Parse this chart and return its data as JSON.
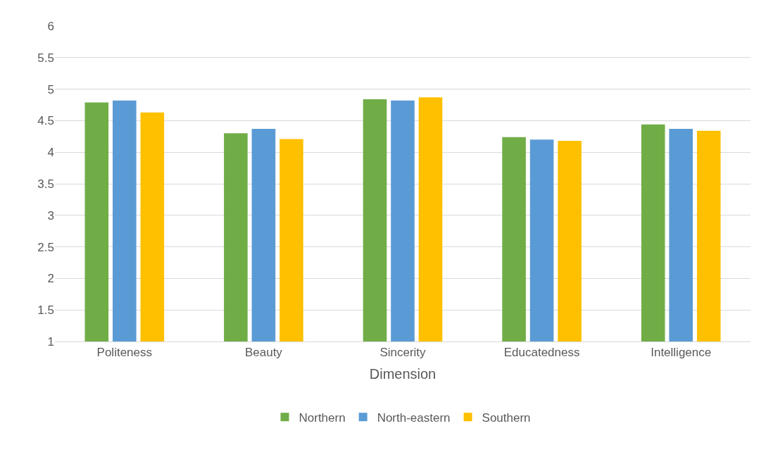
{
  "chart_data": {
    "type": "bar",
    "xlabel": "Dimension",
    "categories": [
      "Politeness",
      "Beauty",
      "Sincerity",
      "Educatedness",
      "Intelligence"
    ],
    "series": [
      {
        "name": "Northern",
        "color": "#70ad47",
        "values": [
          4.79,
          4.3,
          4.84,
          4.24,
          4.44
        ]
      },
      {
        "name": "North-eastern",
        "color": "#5b9bd5",
        "values": [
          4.82,
          4.37,
          4.82,
          4.2,
          4.37
        ]
      },
      {
        "name": "Southern",
        "color": "#ffc000",
        "values": [
          4.63,
          4.21,
          4.87,
          4.18,
          4.34
        ]
      }
    ],
    "ylim": [
      1,
      6
    ],
    "yticks": [
      1,
      1.5,
      2,
      2.5,
      3,
      3.5,
      4,
      4.5,
      5,
      5.5,
      6
    ],
    "grid": "y",
    "legend": "bottom"
  }
}
